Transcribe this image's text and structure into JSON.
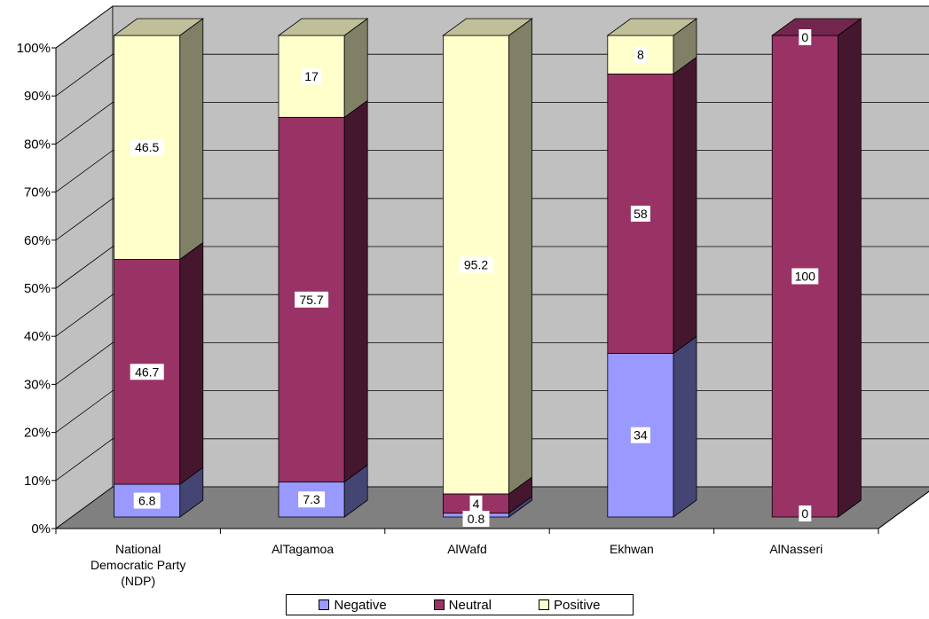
{
  "chart_data": {
    "type": "bar",
    "stacked": true,
    "percent_stacked": true,
    "three_d": true,
    "categories": [
      "National Democratic Party (NDP)",
      "AlTagamoa",
      "AlWafd",
      "Ekhwan",
      "AlNasseri"
    ],
    "series": [
      {
        "name": "Negative",
        "values": [
          6.8,
          7.3,
          0.8,
          34,
          0
        ],
        "color": "#9999ff"
      },
      {
        "name": "Neutral",
        "values": [
          46.7,
          75.7,
          4,
          58,
          100
        ],
        "color": "#993366"
      },
      {
        "name": "Positive",
        "values": [
          46.5,
          17,
          95.2,
          8,
          0
        ],
        "color": "#ffffcc"
      }
    ],
    "y_ticks": [
      "0%",
      "10%",
      "20%",
      "30%",
      "40%",
      "50%",
      "60%",
      "70%",
      "80%",
      "90%",
      "100%"
    ],
    "ylim": [
      0,
      100
    ],
    "grid": true,
    "legend_position": "bottom",
    "wall_color": "#c0c0c0",
    "floor_color": "#808080"
  }
}
